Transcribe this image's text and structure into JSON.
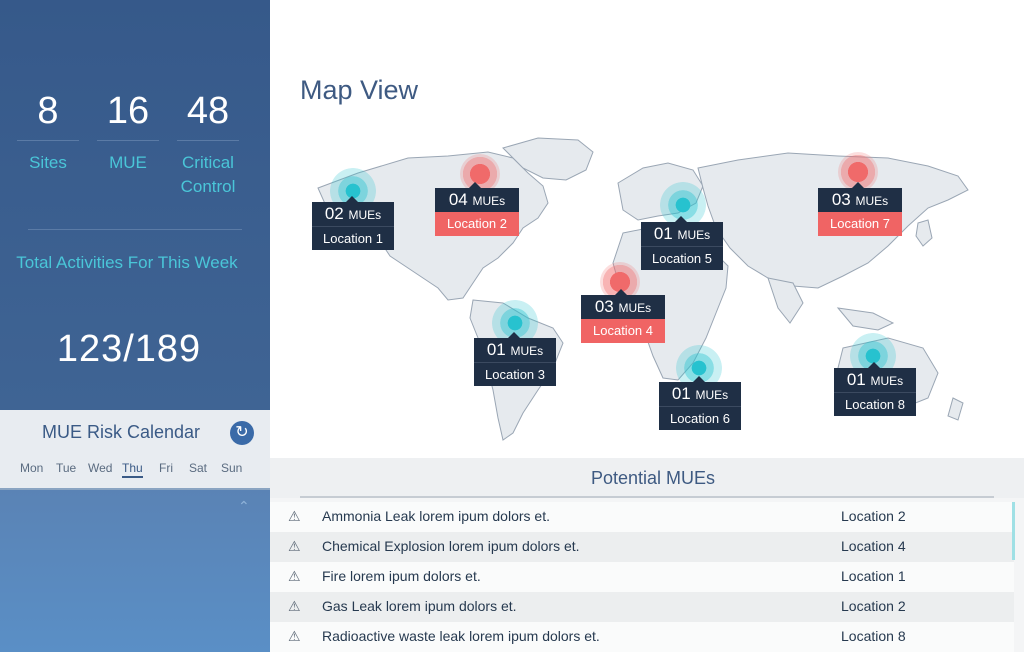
{
  "stats": [
    {
      "value": "8",
      "label": "Sites"
    },
    {
      "value": "16",
      "label": "MUE"
    },
    {
      "value": "48",
      "label": "Critical Control"
    }
  ],
  "activities": {
    "label": "Total Activities For This Week",
    "value": "123/189"
  },
  "calendar": {
    "title": "MUE Risk Calendar",
    "days": [
      "Mon",
      "Tue",
      "Wed",
      "Thu",
      "Fri",
      "Sat",
      "Sun"
    ],
    "active_day": "Thu",
    "refresh_icon": "refresh-icon",
    "collapse_icon": "chevron-up-icon"
  },
  "map": {
    "title": "Map View",
    "markers": [
      {
        "count": "02",
        "unit": "MUEs",
        "location": "Location 1",
        "severity": "normal"
      },
      {
        "count": "04",
        "unit": "MUEs",
        "location": "Location 2",
        "severity": "high"
      },
      {
        "count": "01",
        "unit": "MUEs",
        "location": "Location 3",
        "severity": "normal"
      },
      {
        "count": "03",
        "unit": "MUEs",
        "location": "Location 4",
        "severity": "high"
      },
      {
        "count": "01",
        "unit": "MUEs",
        "location": "Location 5",
        "severity": "normal"
      },
      {
        "count": "01",
        "unit": "MUEs",
        "location": "Location 6",
        "severity": "normal"
      },
      {
        "count": "03",
        "unit": "MUEs",
        "location": "Location 7",
        "severity": "high"
      },
      {
        "count": "01",
        "unit": "MUEs",
        "location": "Location 8",
        "severity": "normal"
      }
    ]
  },
  "potential_mues": {
    "title": "Potential MUEs",
    "rows": [
      {
        "icon": "warning-icon",
        "description": "Ammonia Leak lorem ipum dolors et.",
        "location": "Location 2"
      },
      {
        "icon": "warning-icon",
        "description": "Chemical Explosion lorem ipum dolors et.",
        "location": "Location 4"
      },
      {
        "icon": "warning-icon",
        "description": "Fire lorem ipum dolors et.",
        "location": "Location 1"
      },
      {
        "icon": "warning-icon",
        "description": "Gas Leak  lorem ipum dolors et.",
        "location": "Location 2"
      },
      {
        "icon": "warning-icon",
        "description": "Radioactive waste leak  lorem ipum dolors et.",
        "location": "Location 8"
      }
    ]
  },
  "colors": {
    "sidebar": "#3c5f8e",
    "accent_teal": "#4ac6d8",
    "marker_dark": "#1f2f45",
    "alert_red": "#f06464"
  }
}
